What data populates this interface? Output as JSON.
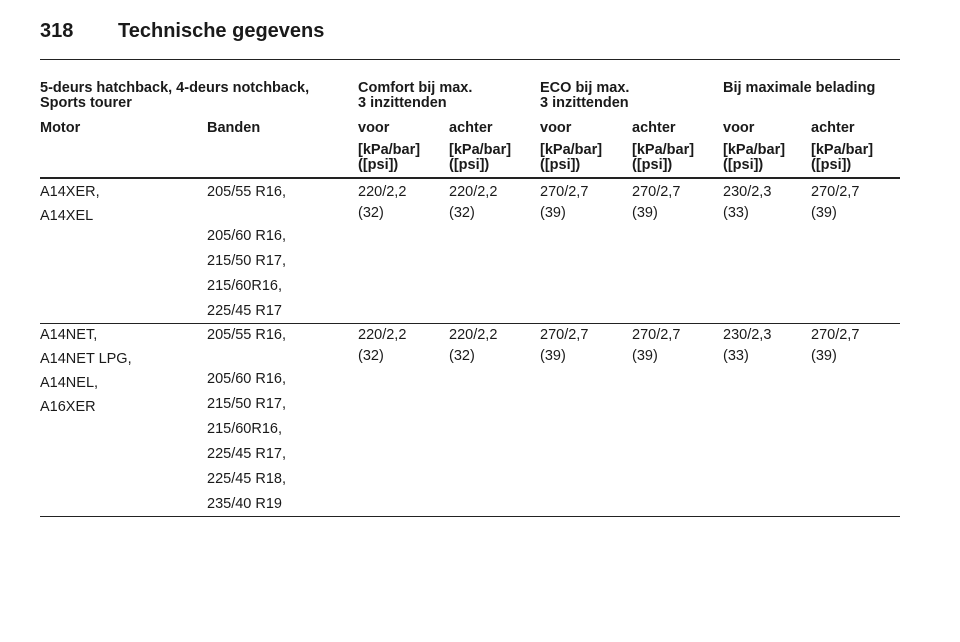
{
  "header": {
    "page_number": "318",
    "title": "Technische gegevens"
  },
  "table": {
    "group_headers": [
      [
        "5-deurs hatchback, 4-deurs notchback,",
        "Sports tourer"
      ],
      [
        "Comfort bij max.",
        "3 inzittenden"
      ],
      [
        "ECO bij max.",
        "3 inzittenden"
      ],
      [
        "Bij maximale belading"
      ]
    ],
    "column_headers": [
      "Motor",
      "Banden",
      "voor",
      "achter",
      "voor",
      "achter",
      "voor",
      "achter"
    ],
    "units": [
      [
        "[kPa/bar]",
        "([psi])"
      ],
      [
        "[kPa/bar]",
        "([psi])"
      ],
      [
        "[kPa/bar]",
        "([psi])"
      ],
      [
        "[kPa/bar]",
        "([psi])"
      ],
      [
        "[kPa/bar]",
        "([psi])"
      ],
      [
        "[kPa/bar]",
        "([psi])"
      ]
    ],
    "rows": [
      {
        "engines": [
          "A14XER,",
          "A14XEL"
        ],
        "tyres": [
          "205/55 R16,",
          "205/60 R16,",
          "215/50 R17,",
          "215/60R16,",
          "225/45 R17"
        ],
        "values": [
          [
            "220/2,2",
            "(32)"
          ],
          [
            "220/2,2",
            "(32)"
          ],
          [
            "270/2,7",
            "(39)"
          ],
          [
            "270/2,7",
            "(39)"
          ],
          [
            "230/2,3",
            "(33)"
          ],
          [
            "270/2,7",
            "(39)"
          ]
        ]
      },
      {
        "engines": [
          "A14NET,",
          "A14NET LPG,",
          "A14NEL,",
          "A16XER"
        ],
        "tyres": [
          "205/55 R16,",
          "205/60 R16,",
          "215/50 R17,",
          "215/60R16,",
          "225/45 R17,",
          "225/45 R18,",
          "235/40 R19"
        ],
        "values": [
          [
            "220/2,2",
            "(32)"
          ],
          [
            "220/2,2",
            "(32)"
          ],
          [
            "270/2,7",
            "(39)"
          ],
          [
            "270/2,7",
            "(39)"
          ],
          [
            "230/2,3",
            "(33)"
          ],
          [
            "270/2,7",
            "(39)"
          ]
        ]
      }
    ]
  }
}
